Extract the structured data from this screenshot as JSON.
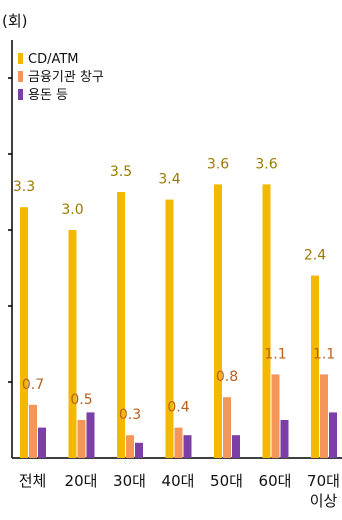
{
  "chart_data": {
    "type": "bar",
    "unit_label": "(회)",
    "categories": [
      "전체",
      "20대",
      "30대",
      "40대",
      "50대",
      "60대",
      [
        "70대",
        "이상"
      ]
    ],
    "series": [
      {
        "name": "CD/ATM",
        "color": "#F5B800",
        "label_color": "#9a7a00",
        "values": [
          3.3,
          3.0,
          3.5,
          3.4,
          3.6,
          3.6,
          2.4
        ],
        "labels": [
          "3.3",
          "3.0",
          "3.5",
          "3.4",
          "3.6",
          "3.6",
          "2.4"
        ]
      },
      {
        "name": "금융기관 창구",
        "color": "#F4955A",
        "label_color": "#b8601e",
        "values": [
          0.7,
          0.5,
          0.3,
          0.4,
          0.8,
          1.1,
          1.1
        ],
        "labels": [
          "0.7",
          "0.5",
          "0.3",
          "0.4",
          "0.8",
          "1.1",
          "1.1"
        ]
      },
      {
        "name": "용돈 등",
        "color": "#7B3FA6",
        "label_color": "#5a2d7a",
        "values": [
          0.4,
          0.6,
          0.2,
          0.3,
          0.3,
          0.5,
          0.6
        ],
        "labels": []
      }
    ],
    "ylim": [
      0,
      5.5
    ],
    "grid": false,
    "legend_position": "top-left"
  }
}
